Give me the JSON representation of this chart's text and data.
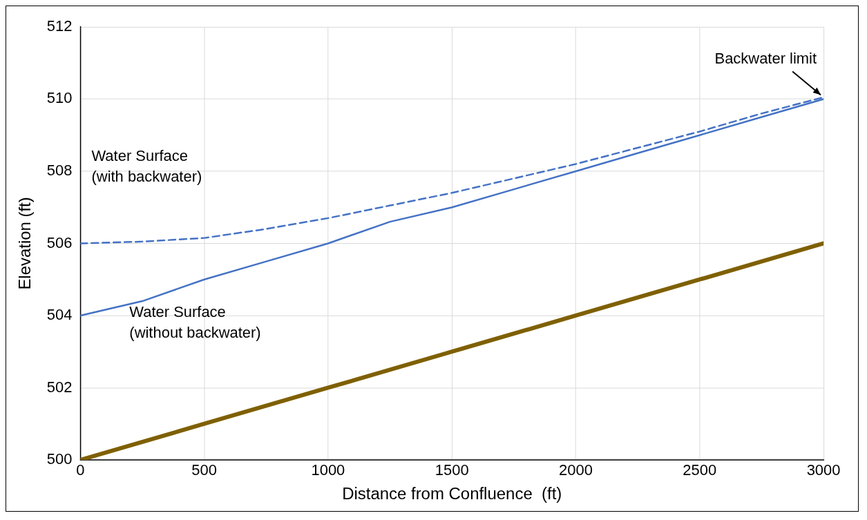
{
  "chart_data": {
    "type": "line",
    "xlabel": "Distance from Confluence  (ft)",
    "ylabel": "Elevation (ft)",
    "xlim": [
      0,
      3000
    ],
    "xticks": [
      0,
      500,
      1000,
      1500,
      2000,
      2500,
      3000
    ],
    "ylim": [
      500,
      512
    ],
    "yticks": [
      500,
      502,
      504,
      506,
      508,
      510,
      512
    ],
    "grid": true,
    "legend": false,
    "marker": "none",
    "series": [
      {
        "color": "#4472c4",
        "line_style": "dashed",
        "x": [
          0,
          250,
          500,
          750,
          1000,
          1250,
          1500,
          1750,
          2000,
          2250,
          2500,
          2750,
          3000
        ],
        "values": [
          506,
          506.05,
          506.15,
          506.4,
          506.7,
          507.05,
          507.4,
          507.8,
          508.2,
          508.65,
          509.1,
          509.6,
          510.05
        ]
      },
      {
        "color": "#4472c4",
        "line_style": "solid",
        "x": [
          0,
          250,
          500,
          750,
          1000,
          1250,
          1500,
          1750,
          2000,
          2250,
          2500,
          2750,
          3000
        ],
        "values": [
          504,
          504.4,
          505,
          505.5,
          506,
          506.6,
          507,
          507.5,
          508,
          508.5,
          509,
          509.5,
          510
        ]
      },
      {
        "color": "#7f6000",
        "line_style": "solid",
        "x": [
          0,
          500,
          1000,
          1500,
          2000,
          2500,
          3000
        ],
        "values": [
          500,
          501,
          502,
          503,
          504,
          505,
          506
        ]
      }
    ],
    "annotations": [
      "Water Surface\n(with backwater)",
      "Water Surface\n(without backwater)",
      {
        "text": "Backwater limit",
        "x": 3000,
        "y": 510
      }
    ]
  }
}
